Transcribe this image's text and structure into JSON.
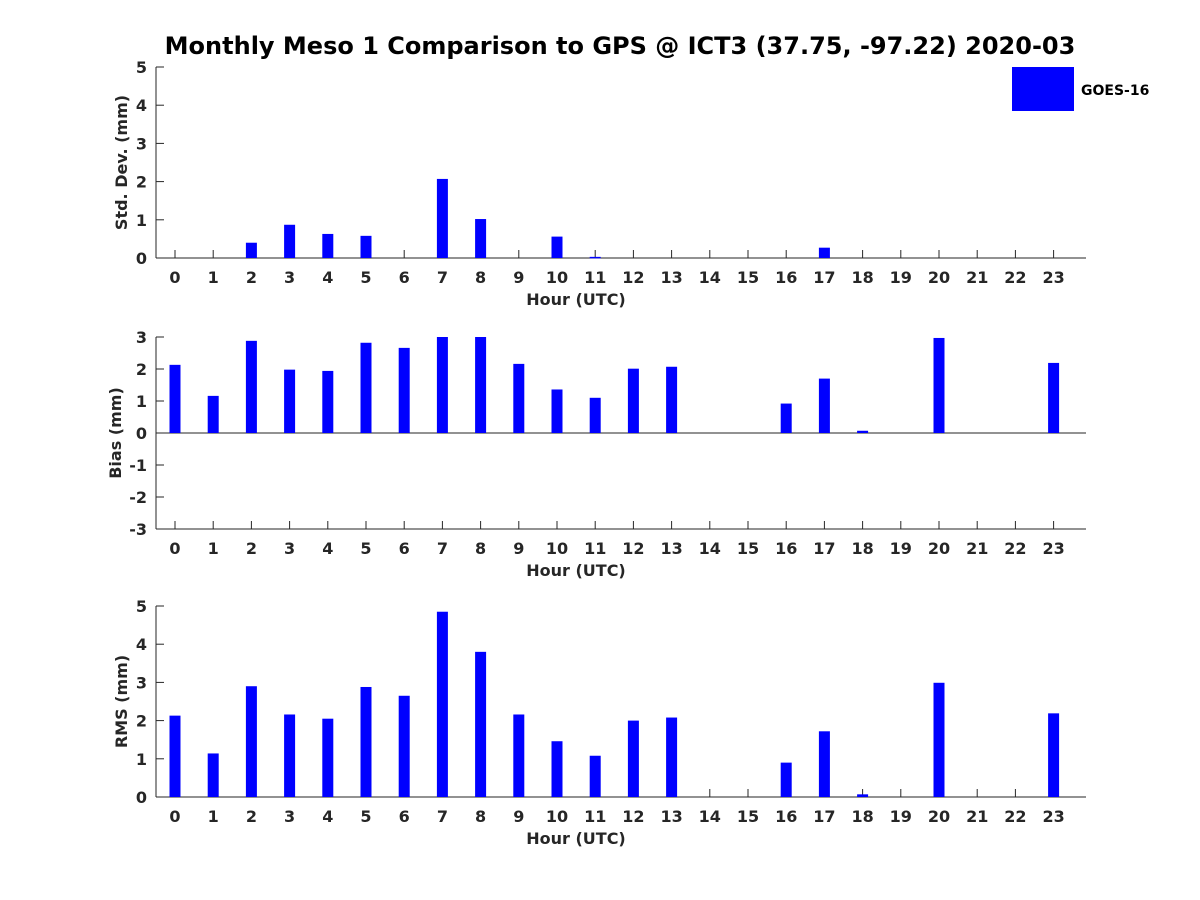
{
  "title": "Monthly Meso 1 Comparison to GPS @ ICT3 (37.75, -97.22) 2020-03",
  "legend": {
    "label": "GOES-16",
    "color": "#0000ff"
  },
  "chart_data": [
    {
      "type": "bar",
      "name": "std",
      "xlabel": "Hour (UTC)",
      "ylabel": "Std. Dev. (mm)",
      "ylim": [
        0,
        5
      ],
      "yticks": [
        0,
        1,
        2,
        3,
        4,
        5
      ],
      "categories": [
        "0",
        "1",
        "2",
        "3",
        "4",
        "5",
        "6",
        "7",
        "8",
        "9",
        "10",
        "11",
        "12",
        "13",
        "14",
        "15",
        "16",
        "17",
        "18",
        "19",
        "20",
        "21",
        "22",
        "23"
      ],
      "series": [
        {
          "name": "GOES-16",
          "values": [
            null,
            null,
            0.4,
            0.87,
            0.63,
            0.58,
            null,
            2.07,
            1.02,
            null,
            0.56,
            0.03,
            null,
            null,
            null,
            null,
            null,
            0.27,
            null,
            null,
            null,
            null,
            null,
            null
          ]
        }
      ]
    },
    {
      "type": "bar",
      "name": "bias",
      "xlabel": "Hour (UTC)",
      "ylabel": "Bias (mm)",
      "ylim": [
        -3,
        3
      ],
      "yticks": [
        -3,
        -2,
        -1,
        0,
        1,
        2,
        3
      ],
      "categories": [
        "0",
        "1",
        "2",
        "3",
        "4",
        "5",
        "6",
        "7",
        "8",
        "9",
        "10",
        "11",
        "12",
        "13",
        "14",
        "15",
        "16",
        "17",
        "18",
        "19",
        "20",
        "21",
        "22",
        "23"
      ],
      "series": [
        {
          "name": "GOES-16",
          "values": [
            2.13,
            1.16,
            2.88,
            1.98,
            1.94,
            2.82,
            2.66,
            3.0,
            3.0,
            2.16,
            1.36,
            1.1,
            2.01,
            2.07,
            null,
            null,
            0.92,
            1.7,
            0.07,
            null,
            2.97,
            null,
            null,
            2.19
          ]
        }
      ]
    },
    {
      "type": "bar",
      "name": "rms",
      "xlabel": "Hour (UTC)",
      "ylabel": "RMS (mm)",
      "ylim": [
        0,
        5
      ],
      "yticks": [
        0,
        1,
        2,
        3,
        4,
        5
      ],
      "categories": [
        "0",
        "1",
        "2",
        "3",
        "4",
        "5",
        "6",
        "7",
        "8",
        "9",
        "10",
        "11",
        "12",
        "13",
        "14",
        "15",
        "16",
        "17",
        "18",
        "19",
        "20",
        "21",
        "22",
        "23"
      ],
      "series": [
        {
          "name": "GOES-16",
          "values": [
            2.13,
            1.14,
            2.9,
            2.16,
            2.05,
            2.88,
            2.65,
            4.85,
            3.8,
            2.16,
            1.46,
            1.08,
            2.0,
            2.08,
            null,
            null,
            0.9,
            1.72,
            0.07,
            null,
            2.99,
            null,
            null,
            2.19
          ]
        }
      ]
    }
  ]
}
